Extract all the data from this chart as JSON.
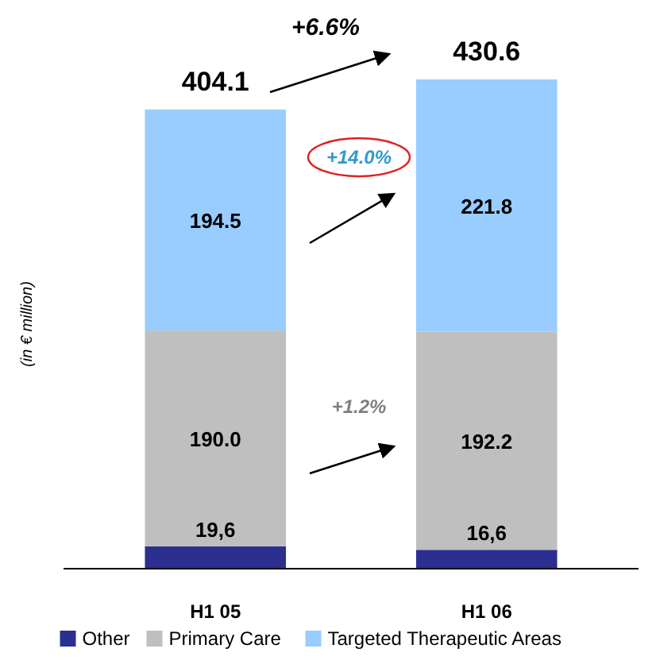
{
  "chart_data": {
    "type": "bar",
    "stacked": true,
    "ylabel": "(in € million)",
    "categories": [
      "H1 05",
      "H1 06"
    ],
    "series": [
      {
        "name": "Other",
        "color": "#2b2f8f",
        "values": [
          19.6,
          16.6
        ],
        "value_labels": [
          "19,6",
          "16,6"
        ]
      },
      {
        "name": "Primary Care",
        "color": "#bfbfbf",
        "values": [
          190.0,
          192.2
        ],
        "value_labels": [
          "190.0",
          "192.2"
        ]
      },
      {
        "name": "Targeted Therapeutic Areas",
        "color": "#99ccff",
        "values": [
          194.5,
          221.8
        ],
        "value_labels": [
          "194.5",
          "221.8"
        ]
      }
    ],
    "totals": [
      "404.1",
      "430.6"
    ],
    "annotations": [
      "+6.6%",
      "+14.0%",
      "+1.2%"
    ],
    "legend": "bottom",
    "grid": false
  }
}
